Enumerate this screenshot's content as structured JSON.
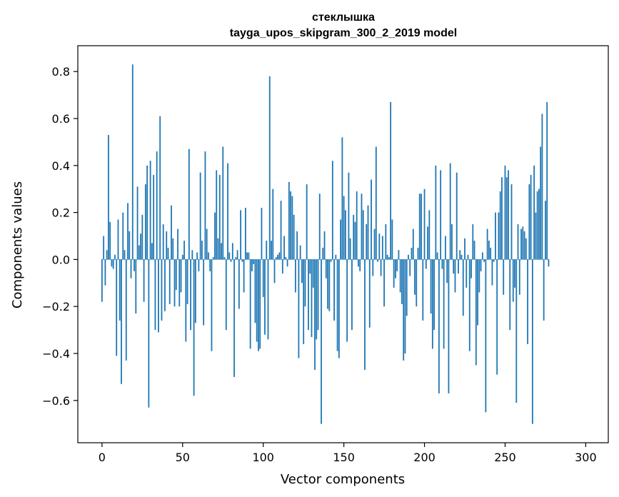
{
  "chart_data": {
    "type": "bar",
    "title": "стеклышка",
    "subtitle": "tayga_upos_skipgram_300_2_2019 model",
    "xlabel": "Vector components",
    "ylabel": "Components values",
    "xlim": [
      -15,
      314
    ],
    "ylim": [
      -0.78,
      0.91
    ],
    "xticks": [
      0,
      50,
      100,
      150,
      200,
      250,
      300
    ],
    "yticks": [
      -0.6,
      -0.4,
      -0.2,
      0.0,
      0.2,
      0.4,
      0.6,
      0.8
    ],
    "ytick_labels": [
      "−0.6",
      "−0.4",
      "−0.2",
      "0.0",
      "0.2",
      "0.4",
      "0.6",
      "0.8"
    ],
    "color": "#1f77b4",
    "grid": false,
    "values": [
      -0.18,
      0.1,
      -0.11,
      0.04,
      0.53,
      0.16,
      -0.03,
      -0.04,
      0.02,
      -0.41,
      0.17,
      -0.26,
      -0.53,
      0.2,
      0.04,
      -0.43,
      0.24,
      0.12,
      -0.08,
      0.83,
      -0.05,
      -0.23,
      0.31,
      0.06,
      0.11,
      0.19,
      -0.18,
      0.32,
      0.4,
      -0.63,
      0.42,
      0.07,
      0.36,
      -0.3,
      0.46,
      -0.31,
      0.61,
      -0.26,
      0.15,
      -0.22,
      0.12,
      0.05,
      -0.19,
      0.23,
      0.09,
      -0.2,
      -0.13,
      0.13,
      -0.2,
      -0.14,
      0.02,
      0.08,
      -0.35,
      -0.19,
      0.47,
      -0.3,
      0.04,
      -0.58,
      -0.27,
      0.03,
      -0.05,
      0.37,
      0.08,
      -0.28,
      0.46,
      0.13,
      0.03,
      -0.05,
      -0.39,
      0.01,
      0.2,
      0.38,
      0.09,
      0.36,
      0.07,
      0.48,
      0.01,
      -0.3,
      0.41,
      0.03,
      -0.01,
      0.07,
      -0.5,
      0.01,
      0.04,
      -0.21,
      0.21,
      -0.01,
      -0.14,
      0.22,
      0.03,
      0.03,
      -0.38,
      -0.05,
      -0.02,
      -0.27,
      -0.35,
      -0.39,
      -0.38,
      0.22,
      -0.16,
      -0.32,
      0.08,
      -0.34,
      0.78,
      0.08,
      0.3,
      -0.1,
      0.01,
      0.02,
      0.03,
      0.25,
      -0.06,
      0.1,
      0.01,
      -0.03,
      0.33,
      0.29,
      0.27,
      0.19,
      -0.14,
      0.12,
      -0.42,
      0.06,
      -0.1,
      -0.36,
      -0.2,
      0.32,
      -0.3,
      -0.06,
      -0.33,
      -0.12,
      -0.47,
      -0.34,
      -0.3,
      0.28,
      -0.7,
      0.05,
      0.12,
      -0.08,
      -0.21,
      -0.22,
      -0.01,
      0.42,
      -0.26,
      0.02,
      -0.39,
      -0.42,
      0.17,
      0.52,
      0.27,
      0.21,
      -0.35,
      0.37,
      0.09,
      -0.3,
      0.19,
      0.16,
      0.29,
      -0.03,
      -0.05,
      0.28,
      0.21,
      -0.47,
      0.15,
      0.23,
      -0.29,
      0.34,
      -0.07,
      0.13,
      0.48,
      -0.01,
      0.11,
      -0.07,
      0.1,
      -0.2,
      0.15,
      0.02,
      0.01,
      0.67,
      0.17,
      -0.12,
      -0.08,
      -0.05,
      0.04,
      -0.14,
      -0.19,
      -0.43,
      -0.4,
      -0.24,
      0.02,
      -0.07,
      0.05,
      0.13,
      -0.15,
      -0.2,
      0.05,
      0.28,
      0.28,
      -0.26,
      0.3,
      -0.04,
      0.14,
      0.21,
      -0.23,
      -0.38,
      -0.3,
      0.4,
      0.03,
      -0.57,
      0.38,
      -0.04,
      -0.38,
      0.1,
      -0.1,
      -0.57,
      0.41,
      0.15,
      -0.06,
      -0.14,
      0.37,
      -0.06,
      0.04,
      0.02,
      -0.24,
      0.09,
      -0.12,
      0.02,
      -0.39,
      -0.08,
      0.15,
      0.08,
      -0.45,
      -0.28,
      -0.14,
      -0.05,
      0.03,
      -0.01,
      -0.65,
      0.13,
      0.08,
      0.05,
      -0.11,
      -0.01,
      0.2,
      -0.49,
      0.2,
      0.29,
      0.35,
      -0.15,
      0.4,
      0.35,
      0.38,
      -0.3,
      0.32,
      -0.18,
      -0.12,
      -0.61,
      0.15,
      -0.15,
      0.13,
      0.14,
      0.12,
      0.09,
      -0.36,
      0.32,
      0.36,
      -0.7,
      0.4,
      0.2,
      0.29,
      0.3,
      0.48,
      0.62,
      -0.26,
      0.25,
      0.67,
      -0.03
    ]
  }
}
